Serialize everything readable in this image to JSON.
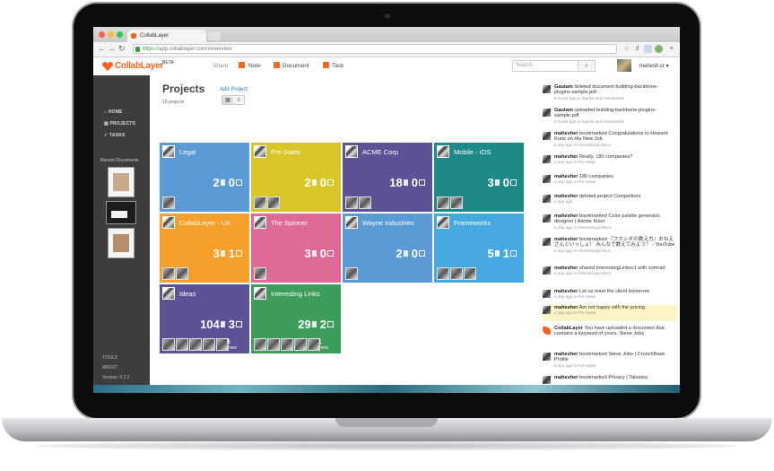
{
  "browser": {
    "tab_title": "CollabLayer",
    "url_scheme": "https://",
    "url_rest": "app.collablayer.com/#overview"
  },
  "app": {
    "logo_text": "CollabLayer",
    "logo_badge": "BETA",
    "brand_color": "#f26522",
    "header": {
      "share": "Share",
      "note": "Note",
      "document": "Document",
      "task": "Task",
      "search_placeholder": "Search",
      "user_name": "mahesh.cr"
    }
  },
  "sidebar": {
    "items": [
      {
        "label": "HOME",
        "icon": "home-icon"
      },
      {
        "label": "PROJECTS",
        "icon": "folder-icon"
      },
      {
        "label": "TASKS",
        "icon": "check-icon"
      }
    ],
    "recent_label": "Recent Documents",
    "tools": "TOOLS",
    "about": "ABOUT",
    "version": "Version: 0.1.2"
  },
  "main": {
    "title": "Projects",
    "add_project": "Add Project",
    "count_label": "10 projects",
    "projects": [
      {
        "name": "Legal",
        "docs": "2",
        "tasks": "0",
        "color": "#5b9bd5",
        "members": 1,
        "more": ""
      },
      {
        "name": "Pre-Sales",
        "docs": "2",
        "tasks": "0",
        "color": "#d8c629",
        "members": 2,
        "more": ""
      },
      {
        "name": "ACME Corp",
        "docs": "18",
        "tasks": "0",
        "color": "#5c5296",
        "members": 2,
        "more": ""
      },
      {
        "name": "Mobile - iOS",
        "docs": "3",
        "tasks": "0",
        "color": "#1d8a88",
        "members": 2,
        "more": ""
      },
      {
        "name": "CollabLayer - UX",
        "docs": "3",
        "tasks": "1",
        "color": "#f5a02a",
        "members": 2,
        "more": ""
      },
      {
        "name": "The Spinner",
        "docs": "3",
        "tasks": "0",
        "color": "#e06a97",
        "members": 1,
        "more": ""
      },
      {
        "name": "Wayne Industries",
        "docs": "2",
        "tasks": "0",
        "color": "#5b9bd5",
        "members": 1,
        "more": ""
      },
      {
        "name": "Frameworks",
        "docs": "5",
        "tasks": "1",
        "color": "#45a8df",
        "members": 3,
        "more": ""
      },
      {
        "name": "Ideas",
        "docs": "104",
        "tasks": "3",
        "color": "#5c5296",
        "members": 5,
        "more": "5"
      },
      {
        "name": "Interesting Links",
        "docs": "29",
        "tasks": "2",
        "color": "#3c9d5d",
        "members": 5,
        "more": "1"
      }
    ],
    "more_word": "more"
  },
  "activity": [
    {
      "user": "Gautam",
      "text": "deleted document building-backbone-plugins-sample.pdf",
      "meta": "5 hours ago in Stacks and frameworks",
      "logo": false,
      "highlight": false
    },
    {
      "user": "Gautam",
      "text": "uploaded building-backbone-plugins-sample.pdf",
      "meta": "5 hours ago in Stacks and frameworks",
      "logo": false,
      "highlight": false
    },
    {
      "user": "mahesher",
      "text": "bookmarked Congratulations to Howard Kurtz on His New Job",
      "meta": "a day ago in InterestingLinksv1",
      "logo": false,
      "highlight": false
    },
    {
      "user": "mahesher",
      "text": "Really, 180 companies?",
      "meta": "a day ago in Pre-Sales",
      "logo": false,
      "highlight": false
    },
    {
      "user": "mahesher",
      "text": "180 companies",
      "meta": "a day ago in Pre-Sales",
      "logo": false,
      "highlight": false
    },
    {
      "user": "mahesher",
      "text": "deleted project Competitors",
      "meta": "a day ago",
      "logo": false,
      "highlight": false
    },
    {
      "user": "mahesher",
      "text": "bookmarked Color palette generator, designer | Adobe Kuler",
      "meta": "a day ago in InterestingLinksv1",
      "logo": false,
      "highlight": false
    },
    {
      "user": "mahesher",
      "text": "bookmarked 『フカシギの数え方』おねえさんといっしょ！ みんなで数えてみよう！ - YouTube",
      "meta": "a day ago in InterestingLinksv1",
      "logo": false,
      "highlight": false
    },
    {
      "user": "mahesher",
      "text": "shared InterestingLinksv1 with somrad",
      "meta": "a day ago in InterestingLinksv1",
      "logo": false,
      "highlight": false
    },
    {
      "user": "mahesher",
      "text": "Let us meet the client tomorrow",
      "meta": "a day ago in Pre-Sales",
      "logo": false,
      "highlight": false
    },
    {
      "user": "mahesher",
      "text": "Am not happy with the pricing",
      "meta": "a day ago in Pre-Sales",
      "logo": false,
      "highlight": true
    },
    {
      "user": "CollabLayer",
      "text": "You have uploaded a document that contains a keyword of yours: Steve Jobs",
      "meta": "",
      "logo": true,
      "highlight": false
    },
    {
      "user": "mahesher",
      "text": "bookmarked Steve Jobs | CrunchBase Profile",
      "meta": "a day ago in Pre-Sales",
      "logo": false,
      "highlight": false
    },
    {
      "user": "mahesher",
      "text": "bookmarked Privacy | Tatsatsu",
      "meta": "",
      "logo": false,
      "highlight": false
    }
  ]
}
